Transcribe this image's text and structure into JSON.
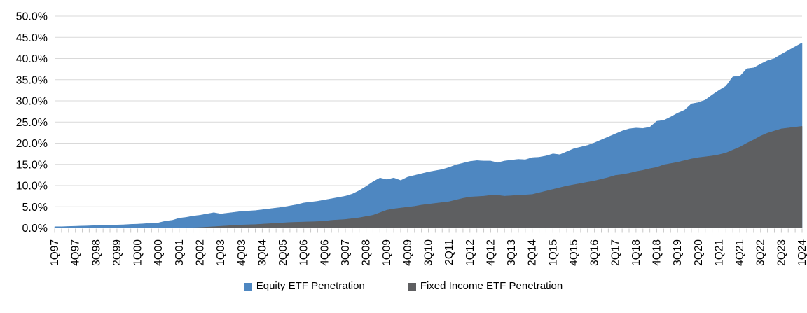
{
  "legend": {
    "items": [
      {
        "label": "Equity ETF Penetration",
        "color": "#4E87C1"
      },
      {
        "label": "Fixed Income ETF Penetration",
        "color": "#5E5F61"
      }
    ]
  },
  "chart_data": {
    "type": "area",
    "mode": "overlay",
    "title": "",
    "xlabel": "",
    "ylabel": "",
    "ylim": [
      0,
      50
    ],
    "y_tick_step": 5,
    "y_ticks": [
      "0.0%",
      "5.0%",
      "10.0%",
      "15.0%",
      "20.0%",
      "25.0%",
      "30.0%",
      "35.0%",
      "40.0%",
      "45.0%",
      "50.0%"
    ],
    "grid": "horizontal",
    "legend_position": "bottom",
    "frequency": "quarterly",
    "start_quarter": "1Q97",
    "end_quarter": "1Q24",
    "x_tick_every": 3,
    "x_tick_labels": [
      "1Q97",
      "4Q97",
      "3Q98",
      "2Q99",
      "1Q00",
      "4Q00",
      "3Q01",
      "2Q02",
      "1Q03",
      "4Q03",
      "3Q04",
      "2Q05",
      "1Q06",
      "4Q06",
      "3Q07",
      "2Q08",
      "1Q09",
      "4Q09",
      "3Q10",
      "2Q11",
      "1Q12",
      "4Q12",
      "3Q13",
      "2Q14",
      "1Q15",
      "4Q15",
      "3Q16",
      "2Q17",
      "1Q18",
      "4Q18",
      "3Q19",
      "2Q20",
      "1Q21",
      "4Q21",
      "3Q22",
      "2Q23",
      "1Q24"
    ],
    "series": [
      {
        "name": "Equity ETF Penetration",
        "color": "#4E87C1",
        "values": [
          0.3,
          0.3,
          0.35,
          0.4,
          0.45,
          0.5,
          0.55,
          0.6,
          0.65,
          0.7,
          0.75,
          0.85,
          0.9,
          1.0,
          1.1,
          1.2,
          1.6,
          1.8,
          2.3,
          2.5,
          2.8,
          3.0,
          3.3,
          3.6,
          3.3,
          3.5,
          3.7,
          3.9,
          4.0,
          4.1,
          4.3,
          4.5,
          4.7,
          4.9,
          5.2,
          5.5,
          5.9,
          6.1,
          6.3,
          6.6,
          6.9,
          7.2,
          7.5,
          8.0,
          8.8,
          9.8,
          10.9,
          11.8,
          11.4,
          11.8,
          11.2,
          12.0,
          12.4,
          12.8,
          13.2,
          13.5,
          13.8,
          14.3,
          14.9,
          15.3,
          15.7,
          15.9,
          15.8,
          15.8,
          15.4,
          15.8,
          16.0,
          16.2,
          16.1,
          16.6,
          16.7,
          17.0,
          17.5,
          17.3,
          18.0,
          18.7,
          19.1,
          19.5,
          20.1,
          20.8,
          21.5,
          22.2,
          22.9,
          23.4,
          23.6,
          23.5,
          23.8,
          25.2,
          25.4,
          26.2,
          27.1,
          27.8,
          29.3,
          29.6,
          30.2,
          31.4,
          32.5,
          33.5,
          35.7,
          35.8,
          37.6,
          37.8,
          38.7,
          39.5,
          40.0,
          41.0,
          41.9,
          42.8,
          43.7
        ]
      },
      {
        "name": "Fixed Income ETF Penetration",
        "color": "#5E5F61",
        "values": [
          0,
          0,
          0,
          0,
          0,
          0,
          0,
          0,
          0,
          0,
          0,
          0,
          0,
          0,
          0,
          0,
          0,
          0,
          0,
          0.05,
          0.05,
          0.1,
          0.2,
          0.3,
          0.4,
          0.5,
          0.6,
          0.7,
          0.75,
          0.8,
          0.9,
          1.0,
          1.1,
          1.2,
          1.3,
          1.35,
          1.4,
          1.45,
          1.5,
          1.6,
          1.8,
          1.9,
          2.0,
          2.2,
          2.4,
          2.7,
          3.0,
          3.6,
          4.2,
          4.5,
          4.7,
          4.9,
          5.1,
          5.4,
          5.6,
          5.8,
          6.0,
          6.2,
          6.6,
          7.0,
          7.3,
          7.4,
          7.5,
          7.7,
          7.7,
          7.5,
          7.6,
          7.7,
          7.8,
          7.9,
          8.3,
          8.7,
          9.1,
          9.5,
          9.9,
          10.2,
          10.5,
          10.8,
          11.1,
          11.5,
          11.9,
          12.4,
          12.6,
          12.9,
          13.3,
          13.6,
          14.0,
          14.3,
          14.9,
          15.2,
          15.5,
          15.9,
          16.3,
          16.6,
          16.8,
          17.0,
          17.3,
          17.7,
          18.4,
          19.1,
          20.0,
          20.8,
          21.7,
          22.4,
          22.9,
          23.4,
          23.6,
          23.8,
          24.0
        ]
      }
    ],
    "axis_colors": {
      "gridline": "#D9D9D9",
      "tick": "#C8C8C8",
      "label": "#000000"
    }
  }
}
